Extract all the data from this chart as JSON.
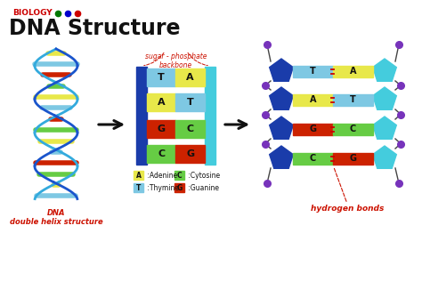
{
  "title": "DNA Structure",
  "subtitle": "BIOLOGY",
  "bg_color": "#ffffff",
  "title_color": "#111111",
  "subtitle_color": "#cc0000",
  "dots": [
    "#007700",
    "#0000cc",
    "#cc0000"
  ],
  "base_pairs": [
    {
      "left": "T",
      "right": "A",
      "left_color": "#7ec8e3",
      "right_color": "#e8e84a"
    },
    {
      "left": "A",
      "right": "T",
      "left_color": "#e8e84a",
      "right_color": "#7ec8e3"
    },
    {
      "left": "G",
      "right": "C",
      "left_color": "#cc2200",
      "right_color": "#66cc44"
    },
    {
      "left": "C",
      "right": "G",
      "left_color": "#66cc44",
      "right_color": "#cc2200"
    }
  ],
  "legend": [
    {
      "label": "A",
      "desc": " :Adenine",
      "color": "#e8e84a"
    },
    {
      "label": "C",
      "desc": " :Cytosine",
      "color": "#66cc44"
    },
    {
      "label": "T",
      "desc": " :Thymine",
      "color": "#7ec8e3"
    },
    {
      "label": "G",
      "desc": " :Guanine",
      "color": "#cc2200"
    }
  ],
  "backbone_left_color": "#1a3caa",
  "backbone_right_color": "#44ccdd",
  "arrow_color": "#111111",
  "label_dna": "DNA\ndouble helix structure",
  "label_backbone": "sugar - phosphate\nbackbone",
  "label_hbonds": "hydrogen bonds",
  "label_color_red": "#cc1100",
  "pentagon_left_color": "#1a3caa",
  "pentagon_right_color": "#44ccdd",
  "dot_color": "#7733bb",
  "helix_blue_color": "#1a55cc",
  "helix_cyan_color": "#33aadd"
}
